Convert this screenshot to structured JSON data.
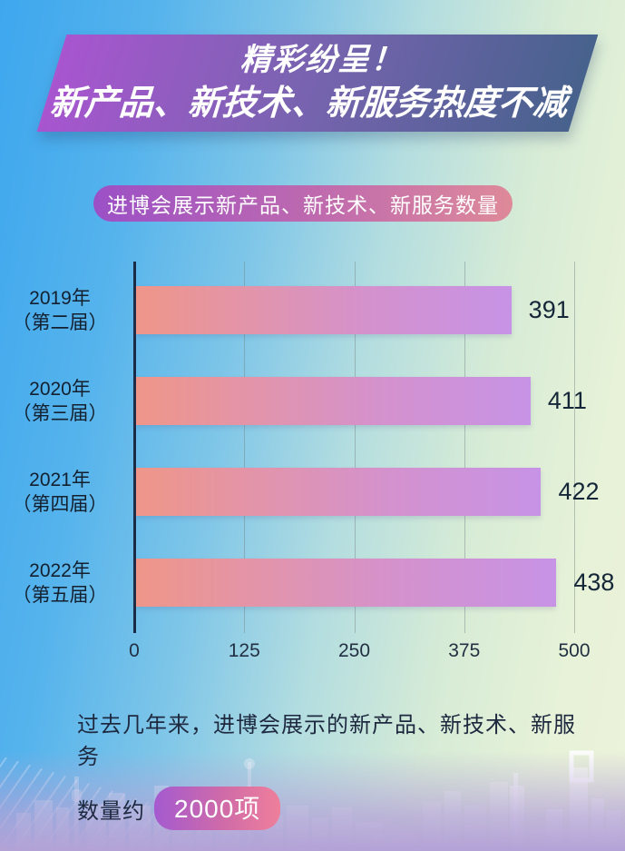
{
  "banner": {
    "line1": "精彩纷呈！",
    "line2": "新产品、新技术、新服务热度不减"
  },
  "subtitle_pill": {
    "text": "进博会展示新产品、新技术、新服务数量"
  },
  "chart_data": {
    "type": "bar",
    "orientation": "horizontal",
    "title": "进博会展示新产品、新技术、新服务数量",
    "categories": [
      "2019年（第二届）",
      "2020年（第三届）",
      "2021年（第四届）",
      "2022年（第五届）"
    ],
    "values": [
      391,
      411,
      422,
      438
    ],
    "xlabel": "",
    "ylabel": "",
    "xlim": [
      0,
      500
    ],
    "xticks": {
      "t0": "0",
      "t1": "125",
      "t2": "250",
      "t3": "375",
      "t4": "500"
    },
    "grid": true,
    "legend_position": "none",
    "rows": [
      {
        "year": "2019年",
        "session": "（第二届）",
        "value": "391",
        "pct": 78.2
      },
      {
        "year": "2020年",
        "session": "（第三届）",
        "value": "411",
        "pct": 82.2
      },
      {
        "year": "2021年",
        "session": "（第四届）",
        "value": "422",
        "pct": 84.4
      },
      {
        "year": "2022年",
        "session": "（第五届）",
        "value": "438",
        "pct": 87.6
      }
    ]
  },
  "footer": {
    "line1": "过去几年来，进博会展示的新产品、新技术、新服务",
    "line2_prefix": "数量约",
    "badge": "2000项"
  },
  "colors": {
    "banner_gradient": [
      "#a855cf",
      "#47628d"
    ],
    "pill_gradient": [
      "#9b50c6",
      "#de8a99"
    ],
    "bar_gradient": [
      "#ef9689",
      "#c793e6"
    ],
    "badge_gradient": [
      "#a45ad0",
      "#ee7f9b"
    ],
    "axis": "#1c2b45",
    "text_dark": "#152638",
    "background_top_left": "#3ea7ee",
    "background_right": "#e7f2d8",
    "background_bottom": "#b3a2d6"
  }
}
